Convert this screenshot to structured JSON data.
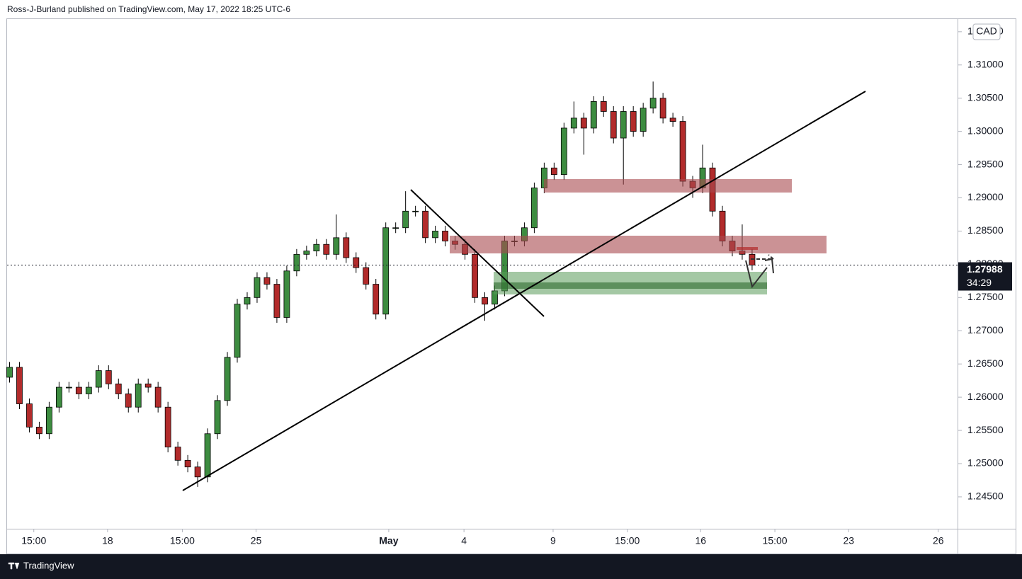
{
  "header": "Ross-J-Burland published on TradingView.com, May 17, 2022 18:25 UTC-6",
  "footer": "TradingView",
  "chart_data": {
    "type": "candlestick",
    "currency": "CAD",
    "last_price": {
      "value": 1.27988,
      "label": "1.27988"
    },
    "countdown": "34:29",
    "up_color": "#3d8c40",
    "down_color": "#b22b2b",
    "xlim": [
      -0.5,
      191.5
    ],
    "ylim": [
      1.2402,
      1.3169
    ],
    "xticks": [
      {
        "value": 4.9,
        "label": "15:00"
      },
      {
        "value": 19.8,
        "label": "18"
      },
      {
        "value": 34.9,
        "label": "15:00"
      },
      {
        "value": 49.8,
        "label": "25"
      },
      {
        "value": 76.6,
        "label": "May"
      },
      {
        "value": 91.8,
        "label": "4"
      },
      {
        "value": 109.8,
        "label": "9"
      },
      {
        "value": 124.8,
        "label": "15:00"
      },
      {
        "value": 139.6,
        "label": "16"
      },
      {
        "value": 154.6,
        "label": "15:00"
      },
      {
        "value": 169.5,
        "label": "23"
      },
      {
        "value": 187.6,
        "label": "26"
      }
    ],
    "yticks": [
      {
        "value": 1.245,
        "label": "1.24500"
      },
      {
        "value": 1.25,
        "label": "1.25000"
      },
      {
        "value": 1.255,
        "label": "1.25500"
      },
      {
        "value": 1.26,
        "label": "1.26000"
      },
      {
        "value": 1.265,
        "label": "1.26500"
      },
      {
        "value": 1.27,
        "label": "1.27000"
      },
      {
        "value": 1.275,
        "label": "1.27500"
      },
      {
        "value": 1.28,
        "label": "1.28000"
      },
      {
        "value": 1.285,
        "label": "1.28500"
      },
      {
        "value": 1.29,
        "label": "1.29000"
      },
      {
        "value": 1.295,
        "label": "1.29500"
      },
      {
        "value": 1.3,
        "label": "1.30000"
      },
      {
        "value": 1.305,
        "label": "1.30500"
      },
      {
        "value": 1.31,
        "label": "1.31000"
      },
      {
        "value": 1.315,
        "label": "1.31500"
      }
    ],
    "x": [
      0,
      2,
      4,
      6,
      8,
      10,
      12,
      14,
      16,
      18,
      20,
      22,
      24,
      26,
      28,
      30,
      32,
      34,
      36,
      38,
      40,
      42,
      44,
      46,
      48,
      50,
      52,
      54,
      56,
      58,
      60,
      62,
      64,
      66,
      68,
      70,
      72,
      74,
      76,
      78,
      80,
      82,
      84,
      86,
      88,
      90,
      92,
      94,
      96,
      98,
      100,
      102,
      104,
      106,
      108,
      110,
      112,
      114,
      116,
      118,
      120,
      122,
      124,
      126,
      128,
      130,
      132,
      134,
      136,
      138,
      140,
      142,
      144,
      146,
      148,
      150
    ],
    "open": [
      1.263,
      1.2645,
      1.259,
      1.2555,
      1.2545,
      1.2585,
      1.2615,
      1.2615,
      1.2605,
      1.2615,
      1.264,
      1.262,
      1.2605,
      1.2585,
      1.262,
      1.2615,
      1.2585,
      1.2525,
      1.2505,
      1.2495,
      1.248,
      1.2545,
      1.2595,
      1.266,
      1.274,
      1.275,
      1.278,
      1.277,
      1.272,
      1.279,
      1.2815,
      1.282,
      1.283,
      1.2815,
      1.284,
      1.281,
      1.2795,
      1.277,
      1.2725,
      1.2855,
      1.2855,
      1.288,
      1.288,
      1.284,
      1.285,
      1.2835,
      1.283,
      1.2815,
      1.275,
      1.274,
      1.276,
      1.2835,
      1.2835,
      1.2855,
      1.2915,
      1.2945,
      1.2935,
      1.3005,
      1.302,
      1.3005,
      1.3045,
      1.303,
      1.299,
      1.303,
      1.3,
      1.3035,
      1.305,
      1.302,
      1.3015,
      1.2925,
      1.2915,
      1.2945,
      1.288,
      1.2835,
      1.282,
      1.2815
    ],
    "high": [
      1.2653,
      1.2653,
      1.2598,
      1.2563,
      1.2593,
      1.2623,
      1.2623,
      1.2623,
      1.2623,
      1.2648,
      1.2648,
      1.2628,
      1.2613,
      1.2628,
      1.2628,
      1.2623,
      1.2593,
      1.2533,
      1.2513,
      1.2503,
      1.2553,
      1.2603,
      1.2668,
      1.2748,
      1.2758,
      1.2788,
      1.2788,
      1.2778,
      1.2798,
      1.2823,
      1.2828,
      1.2838,
      1.2838,
      1.2875,
      1.2848,
      1.2818,
      1.2803,
      1.2778,
      1.2863,
      1.2863,
      1.291,
      1.2888,
      1.2888,
      1.2858,
      1.2858,
      1.2843,
      1.2838,
      1.2823,
      1.2758,
      1.2768,
      1.2843,
      1.2843,
      1.2863,
      1.2923,
      1.2953,
      1.2953,
      1.3013,
      1.3045,
      1.3028,
      1.3053,
      1.3053,
      1.3038,
      1.3038,
      1.3038,
      1.3043,
      1.3075,
      1.3058,
      1.3028,
      1.3023,
      1.2933,
      1.298,
      1.2953,
      1.2888,
      1.2843,
      1.286,
      1.2823
    ],
    "low": [
      1.2622,
      1.2582,
      1.2547,
      1.2537,
      1.2537,
      1.2577,
      1.2607,
      1.2597,
      1.2597,
      1.2607,
      1.2612,
      1.2597,
      1.2577,
      1.2577,
      1.2607,
      1.2577,
      1.2517,
      1.2497,
      1.2487,
      1.2465,
      1.2472,
      1.2537,
      1.2587,
      1.2652,
      1.2732,
      1.2742,
      1.2762,
      1.2712,
      1.2712,
      1.2782,
      1.2807,
      1.2812,
      1.2807,
      1.2807,
      1.2802,
      1.2787,
      1.2762,
      1.2717,
      1.2717,
      1.2847,
      1.2847,
      1.2872,
      1.2832,
      1.2832,
      1.2827,
      1.2822,
      1.2807,
      1.2742,
      1.2715,
      1.2732,
      1.2752,
      1.2827,
      1.2827,
      1.2847,
      1.2907,
      1.2927,
      1.2927,
      1.2997,
      1.2965,
      1.2997,
      1.3022,
      1.2982,
      1.292,
      1.2992,
      1.2992,
      1.3027,
      1.3012,
      1.3007,
      1.2917,
      1.29,
      1.2907,
      1.2872,
      1.2827,
      1.2812,
      1.2807,
      1.2791
    ],
    "close": [
      1.2645,
      1.259,
      1.2555,
      1.2545,
      1.2585,
      1.2615,
      1.2615,
      1.2605,
      1.2615,
      1.264,
      1.262,
      1.2605,
      1.2585,
      1.262,
      1.2615,
      1.2585,
      1.2525,
      1.2505,
      1.2495,
      1.248,
      1.2545,
      1.2595,
      1.266,
      1.274,
      1.275,
      1.278,
      1.277,
      1.272,
      1.279,
      1.2815,
      1.282,
      1.283,
      1.2815,
      1.284,
      1.281,
      1.2795,
      1.277,
      1.2725,
      1.2855,
      1.2855,
      1.288,
      1.288,
      1.284,
      1.285,
      1.2835,
      1.283,
      1.2815,
      1.275,
      1.274,
      1.276,
      1.2835,
      1.2835,
      1.2855,
      1.2915,
      1.2945,
      1.2935,
      1.3005,
      1.302,
      1.3005,
      1.3045,
      1.303,
      1.299,
      1.303,
      1.3,
      1.3035,
      1.305,
      1.302,
      1.3015,
      1.2925,
      1.2915,
      1.2945,
      1.288,
      1.2835,
      1.282,
      1.2815,
      1.27988
    ]
  }
}
